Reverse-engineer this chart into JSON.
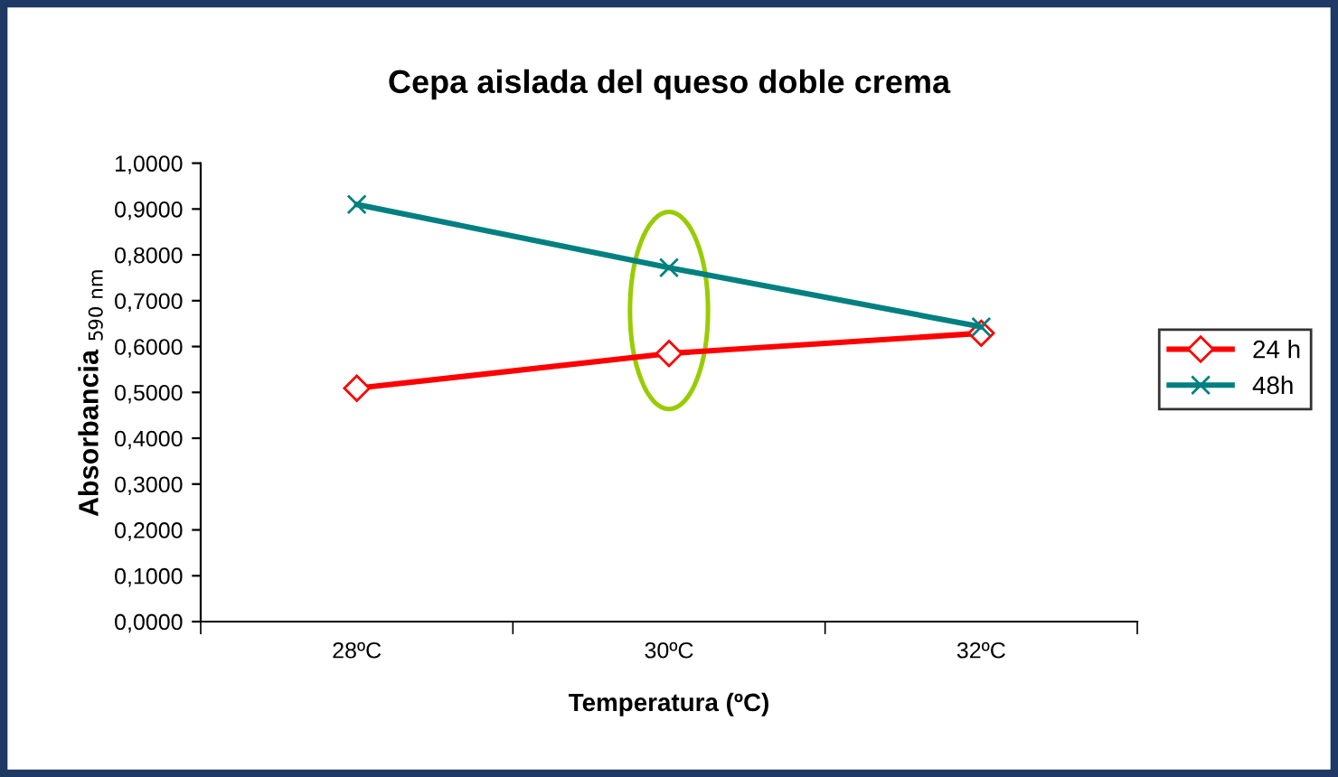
{
  "chart_data": {
    "type": "line",
    "title": "Cepa aislada del queso doble crema",
    "xlabel": "Temperatura (ºC)",
    "ylabel": "Absorbancia $_{590 nm}$",
    "categories": [
      "28ºC",
      "30ºC",
      "32ºC"
    ],
    "series": [
      {
        "name": "24 h",
        "color": "#ff0000",
        "values": [
          0.509,
          0.585,
          0.629
        ],
        "marker": "diamond"
      },
      {
        "name": "48h",
        "color": "#008080",
        "values": [
          0.91,
          0.772,
          0.643
        ],
        "marker": "cross"
      }
    ],
    "ylim": [
      0,
      1
    ],
    "yticks": [
      {
        "value": 0,
        "label": "0,0000"
      },
      {
        "value": 0.1,
        "label": "0,1000"
      },
      {
        "value": 0.2,
        "label": "0,2000"
      },
      {
        "value": 0.3,
        "label": "0,3000"
      },
      {
        "value": 0.4,
        "label": "0,4000"
      },
      {
        "value": 0.5,
        "label": "0,5000"
      },
      {
        "value": 0.6,
        "label": "0,6000"
      },
      {
        "value": 0.7,
        "label": "0,7000"
      },
      {
        "value": 0.8,
        "label": "0,8000"
      },
      {
        "value": 0.9,
        "label": "0,9000"
      },
      {
        "value": 1,
        "label": "1,0000"
      }
    ],
    "legend": "right",
    "grid": false
  }
}
